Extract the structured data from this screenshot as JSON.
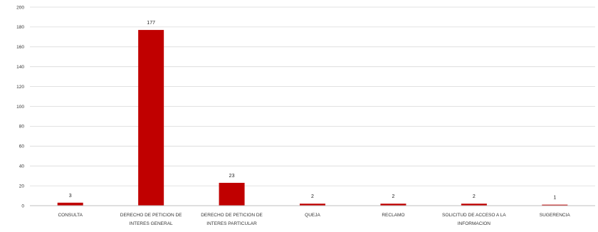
{
  "chart_data": {
    "type": "bar",
    "categories": [
      [
        "CONSULTA"
      ],
      [
        "DERECHO DE PETICION DE",
        "INTERES GENERAL"
      ],
      [
        "DERECHO DE PETICION DE",
        "INTERES PARTICULAR"
      ],
      [
        "QUEJA"
      ],
      [
        "RECLAMO"
      ],
      [
        "SOLICITUD DE ACCESO A LA",
        "INFORMACION"
      ],
      [
        "SUGERENCIA"
      ]
    ],
    "values": [
      3,
      177,
      23,
      2,
      2,
      2,
      1
    ],
    "data_labels": [
      "3",
      "177",
      "23",
      "2",
      "2",
      "2",
      "1"
    ],
    "ylim": [
      0,
      200
    ],
    "yticks": [
      0,
      20,
      40,
      60,
      80,
      100,
      120,
      140,
      160,
      180,
      200
    ],
    "title": "",
    "xlabel": "",
    "ylabel": "",
    "grid": true,
    "legend": "none",
    "bar_color": "#c00000"
  }
}
